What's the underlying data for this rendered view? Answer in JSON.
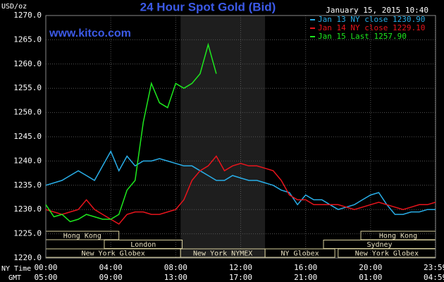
{
  "chart_data": {
    "type": "line",
    "title": "24 Hour Spot Gold (Bid)",
    "site": "www.kitco.com",
    "timestamp": "January 15, 2015 10:40",
    "ylabel": "USD/oz",
    "xlabel": "NY Time",
    "x2label": "GMT",
    "x": [
      0,
      0.5,
      1,
      1.5,
      2,
      2.5,
      3,
      3.5,
      4,
      4.5,
      5,
      5.5,
      6,
      6.5,
      7,
      7.5,
      8,
      8.5,
      9,
      9.5,
      10,
      10.5,
      11,
      11.5,
      12,
      12.5,
      13,
      13.5,
      14,
      14.5,
      15,
      15.5,
      16,
      16.5,
      17,
      17.5,
      18,
      18.5,
      19,
      19.5,
      20,
      20.5,
      21,
      21.5,
      22,
      22.5,
      23,
      23.5,
      24
    ],
    "series": [
      {
        "name": "Jan 13 NY close 1230.90",
        "color": "#29aee8",
        "values": [
          1235,
          1235.5,
          1236,
          1237,
          1238,
          1237,
          1236,
          1239,
          1242,
          1238,
          1241,
          1239,
          1240,
          1240,
          1240.5,
          1240,
          1239.5,
          1239,
          1239,
          1238,
          1237,
          1236,
          1236,
          1237,
          1236.5,
          1236,
          1236,
          1235.5,
          1235,
          1234,
          1233.5,
          1231,
          1233,
          1232,
          1232,
          1231,
          1230,
          1230.5,
          1231,
          1232,
          1233,
          1233.5,
          1231,
          1229,
          1229,
          1229.5,
          1229.5,
          1230,
          1230
        ]
      },
      {
        "name": "Jan 14 NY close 1229.10",
        "color": "#e8141c",
        "values": [
          1230,
          1229.5,
          1229,
          1229.5,
          1230,
          1232,
          1230,
          1229,
          1228,
          1227,
          1229,
          1229.5,
          1229.5,
          1229,
          1229,
          1229.5,
          1230,
          1232,
          1236,
          1238,
          1239,
          1241,
          1238,
          1239,
          1239.5,
          1239,
          1239,
          1238.5,
          1238,
          1236,
          1233,
          1232,
          1232,
          1231,
          1231,
          1231,
          1231,
          1230.5,
          1230,
          1230.5,
          1231,
          1231.5,
          1231,
          1230.5,
          1230,
          1230.5,
          1231,
          1231,
          1231.5
        ]
      },
      {
        "name": "Jan 15 Last 1257.90",
        "color": "#1ee81e",
        "values": [
          1231,
          1228.5,
          1229,
          1227.5,
          1228,
          1229,
          1228.5,
          1228,
          1228,
          1229,
          1234,
          1236,
          1248,
          1256,
          1252,
          1251,
          1256,
          1255,
          1256,
          1258,
          1264,
          1258,
          null,
          null,
          null,
          null,
          null,
          null,
          null,
          null,
          null,
          null,
          null,
          null,
          null,
          null,
          null,
          null,
          null,
          null,
          null,
          null,
          null,
          null,
          null,
          null,
          null,
          null,
          null
        ]
      }
    ],
    "xlim": [
      0,
      24
    ],
    "ylim": [
      1220,
      1270
    ],
    "yticks": [
      {
        "value": 1220,
        "label": "1220.0"
      },
      {
        "value": 1225,
        "label": "1225.0"
      },
      {
        "value": 1230,
        "label": "1230.0"
      },
      {
        "value": 1235,
        "label": "1235.0"
      },
      {
        "value": 1240,
        "label": "1240.0"
      },
      {
        "value": 1245,
        "label": "1245.0"
      },
      {
        "value": 1250,
        "label": "1250.0"
      },
      {
        "value": 1255,
        "label": "1255.0"
      },
      {
        "value": 1260,
        "label": "1260.0"
      },
      {
        "value": 1265,
        "label": "1265.0"
      },
      {
        "value": 1270,
        "label": "1270.0"
      }
    ],
    "xticks": [
      {
        "value": 0,
        "label": "00:00"
      },
      {
        "value": 4,
        "label": "04:00"
      },
      {
        "value": 8,
        "label": "08:00"
      },
      {
        "value": 12,
        "label": "12:00"
      },
      {
        "value": 16,
        "label": "16:00"
      },
      {
        "value": 20,
        "label": "20:00"
      },
      {
        "value": 23.98,
        "label": "23:59"
      }
    ],
    "x2ticks": [
      {
        "value": 0,
        "label": "05:00"
      },
      {
        "value": 4,
        "label": "09:00"
      },
      {
        "value": 8,
        "label": "13:00"
      },
      {
        "value": 12,
        "label": "17:00"
      },
      {
        "value": 16,
        "label": "21:00"
      },
      {
        "value": 20,
        "label": "01:00"
      },
      {
        "value": 23.98,
        "label": "04:59"
      }
    ],
    "grid": true,
    "sessions": [
      {
        "label": "Hong Kong",
        "start": 0,
        "end": 4.5,
        "row": 0
      },
      {
        "label": "Hong Kong",
        "start": 19.4,
        "end": 24,
        "row": 0
      },
      {
        "label": "London",
        "start": 3.6,
        "end": 8.4,
        "row": 1
      },
      {
        "label": "Sydney",
        "start": 17.1,
        "end": 24,
        "row": 1
      },
      {
        "label": "New York Globex",
        "start": 0,
        "end": 8.3,
        "row": 2
      },
      {
        "label": "New York NYMEX",
        "start": 8.3,
        "end": 13.5,
        "row": 2,
        "shaded": true
      },
      {
        "label": "NY Globex",
        "start": 13.5,
        "end": 17.8,
        "row": 2
      },
      {
        "label": "New York Globex",
        "start": 18,
        "end": 24,
        "row": 2
      }
    ]
  }
}
